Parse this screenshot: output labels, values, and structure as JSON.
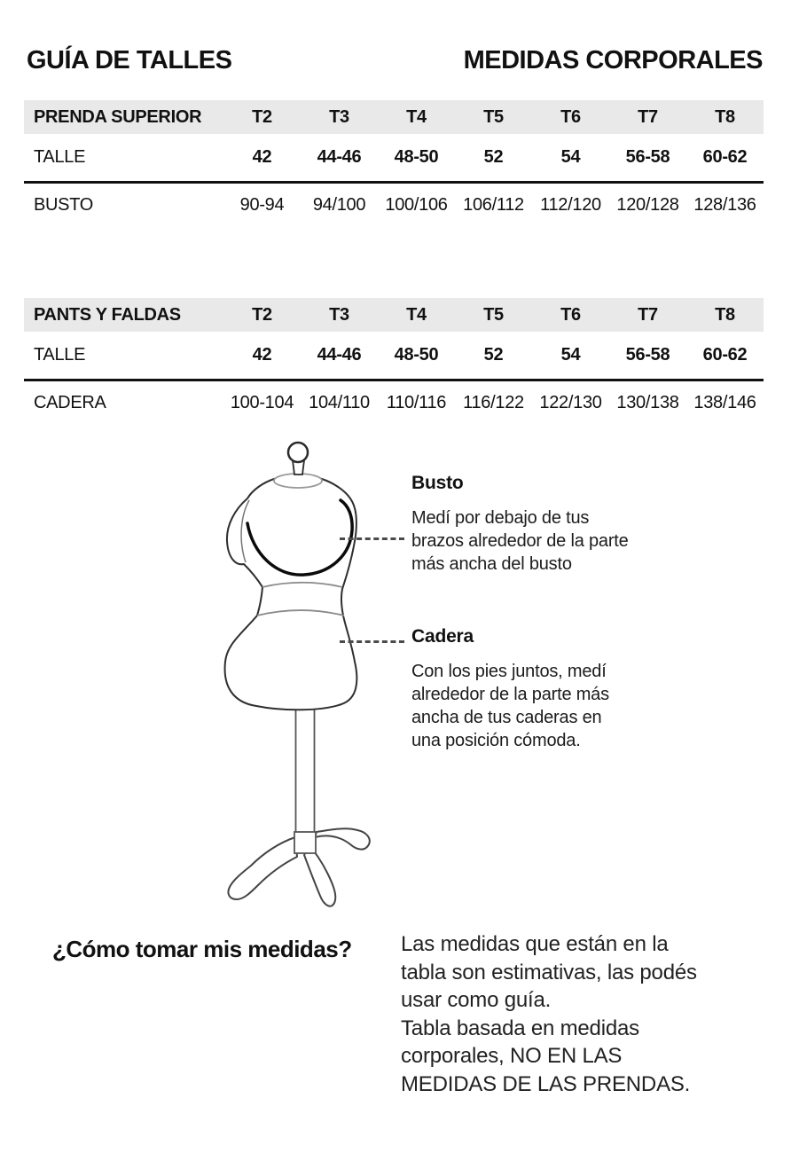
{
  "page": {
    "title_left": "GUÍA DE TALLES",
    "title_right": "MEDIDAS CORPORALES"
  },
  "tables": [
    {
      "name": "PRENDA SUPERIOR",
      "size_headers": [
        "T2",
        "T3",
        "T4",
        "T5",
        "T6",
        "T7",
        "T8"
      ],
      "rows": [
        {
          "label": "TALLE",
          "emphasis": true,
          "values": [
            "42",
            "44-46",
            "48-50",
            "52",
            "54",
            "56-58",
            "60-62"
          ]
        },
        {
          "label": "BUSTO",
          "emphasis": false,
          "values": [
            "90-94",
            "94/100",
            "100/106",
            "106/112",
            "112/120",
            "120/128",
            "128/136"
          ]
        }
      ]
    },
    {
      "name": "PANTS Y FALDAS",
      "size_headers": [
        "T2",
        "T3",
        "T4",
        "T5",
        "T6",
        "T7",
        "T8"
      ],
      "rows": [
        {
          "label": "TALLE",
          "emphasis": true,
          "values": [
            "42",
            "44-46",
            "48-50",
            "52",
            "54",
            "56-58",
            "60-62"
          ]
        },
        {
          "label": "CADERA",
          "emphasis": false,
          "values": [
            "100-104",
            "104/110",
            "110/116",
            "116/122",
            "122/130",
            "130/138",
            "138/146"
          ]
        }
      ]
    }
  ],
  "figure": {
    "busto": {
      "title": "Busto",
      "description": "Medí por debajo de tus\nbrazos alrededor de la parte\nmás ancha del busto"
    },
    "cadera": {
      "title": "Cadera",
      "description": "Con los pies juntos, medí\nalrededor de la parte más\nancha de tus caderas en\nuna posición cómoda."
    }
  },
  "footer": {
    "question": "¿Cómo tomar mis medidas?",
    "note": "Las medidas que están en la\ntabla son estimativas, las podés\nusar como guía.\nTabla basada en medidas\ncorporales, NO EN LAS\nMEDIDAS DE LAS PRENDAS."
  },
  "colors": {
    "table_header_bg": "#e9e9e9",
    "text": "#111111",
    "dash_line": "#4a4a4a"
  }
}
